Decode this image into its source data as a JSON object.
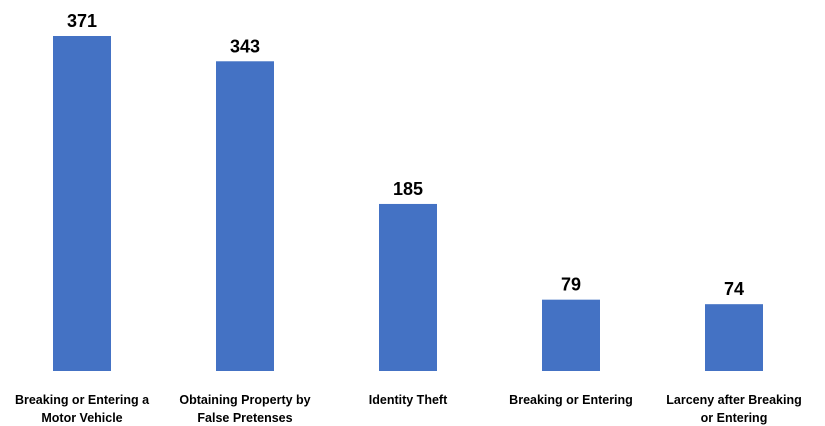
{
  "chart_data": {
    "type": "bar",
    "title": "",
    "xlabel": "",
    "ylabel": "",
    "categories": [
      "Breaking or Entering a Motor Vehicle",
      "Obtaining Property by False Pretenses",
      "Identity Theft",
      "Breaking or Entering",
      "Larceny after Breaking or Entering"
    ],
    "category_label_lines": [
      [
        "Breaking or Entering a",
        "Motor Vehicle"
      ],
      [
        "Obtaining Property by",
        "False Pretenses"
      ],
      [
        "Identity Theft"
      ],
      [
        "Breaking or Entering"
      ],
      [
        "Larceny after Breaking",
        "or Entering"
      ]
    ],
    "values": [
      371,
      343,
      185,
      79,
      74
    ],
    "data_labels": [
      "371",
      "343",
      "185",
      "79",
      "74"
    ],
    "ylim": [
      0,
      371
    ],
    "bar_color": "#4472C4",
    "grid": false,
    "legend": "none"
  }
}
